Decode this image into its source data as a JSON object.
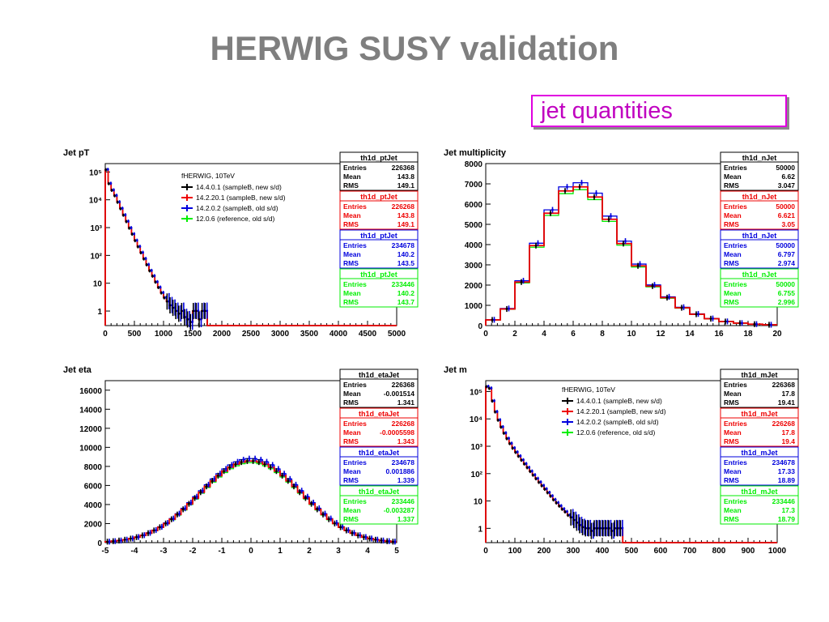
{
  "slide": {
    "title": "HERWIG SUSY validation",
    "callout": "jet quantities"
  },
  "colors": {
    "v1": "#000000",
    "v2": "#ee0000",
    "v3": "#0000dd",
    "v4": "#00ee00",
    "title": "#7f7f7f",
    "callout": "#c000c0"
  },
  "legend": {
    "title": "fHERWIG, 10TeV",
    "entries": [
      "14.4.0.1 (sampleB, new s/d)",
      "14.2.20.1 (sampleB, new s/d)",
      "14.2.0.2 (sampleB, old s/d)",
      "12.0.6 (reference, old s/d)"
    ]
  },
  "stat_labels": [
    "Entries",
    "Mean",
    "RMS"
  ],
  "chart_data": [
    {
      "type": "line",
      "title": "Jet pT",
      "histogram": "th1d_ptJet",
      "log_y": true,
      "xlim": [
        0,
        5000
      ],
      "ylim": [
        0.3,
        200000
      ],
      "x_ticks": [
        "0",
        "500",
        "1000",
        "1500",
        "2000",
        "2500",
        "3000",
        "3500",
        "4000",
        "4500",
        "5000"
      ],
      "y_ticks": [
        "1",
        "10",
        "10²",
        "10³",
        "10⁴",
        "10⁵"
      ],
      "legend": true,
      "stats": [
        {
          "entries": "226368",
          "mean": "143.8",
          "rms": "149.1"
        },
        {
          "entries": "226268",
          "mean": "143.8",
          "rms": "149.1"
        },
        {
          "entries": "234678",
          "mean": "140.2",
          "rms": "143.5"
        },
        {
          "entries": "233446",
          "mean": "140.2",
          "rms": "143.7"
        }
      ],
      "bin_edges": [
        0,
        50,
        100,
        150,
        200,
        250,
        300,
        350,
        400,
        450,
        500,
        550,
        600,
        650,
        700,
        750,
        800,
        850,
        900,
        950,
        1000,
        1050,
        1100,
        1150,
        1200,
        1250,
        1300,
        1350,
        1400,
        1450,
        1500,
        1550,
        1600,
        1650,
        1700,
        1750,
        1800,
        5000
      ],
      "values": [
        120000,
        38000,
        22000,
        14000,
        8200,
        4800,
        2800,
        1650,
        960,
        580,
        340,
        205,
        125,
        75,
        46,
        28,
        18,
        11,
        7,
        4.5,
        3.0,
        2.2,
        1.6,
        1.3,
        1.0,
        0.8,
        1.0,
        0.6,
        0.5,
        0.4,
        1,
        1,
        0.5,
        1,
        1,
        0,
        0
      ]
    },
    {
      "type": "line",
      "title": "Jet multiplicity",
      "histogram": "th1d_nJet",
      "log_y": false,
      "xlim": [
        0,
        20
      ],
      "ylim": [
        0,
        8000
      ],
      "x_ticks": [
        "0",
        "2",
        "4",
        "6",
        "8",
        "10",
        "12",
        "14",
        "16",
        "18",
        "20"
      ],
      "y_ticks": [
        "0",
        "1000",
        "2000",
        "3000",
        "4000",
        "5000",
        "6000",
        "7000",
        "8000"
      ],
      "legend": false,
      "stats": [
        {
          "entries": "50000",
          "mean": "6.62",
          "rms": "3.047"
        },
        {
          "entries": "50000",
          "mean": "6.621",
          "rms": "3.05"
        },
        {
          "entries": "50000",
          "mean": "6.797",
          "rms": "2.974"
        },
        {
          "entries": "50000",
          "mean": "6.755",
          "rms": "2.996"
        }
      ],
      "bin_edges": [
        0,
        1,
        2,
        3,
        4,
        5,
        6,
        7,
        8,
        9,
        10,
        11,
        12,
        13,
        14,
        15,
        16,
        17,
        18,
        19,
        20
      ],
      "values": [
        280,
        820,
        2150,
        3950,
        5550,
        6650,
        6850,
        6350,
        5250,
        4050,
        2950,
        1950,
        1380,
        880,
        560,
        340,
        200,
        120,
        70,
        40
      ]
    },
    {
      "type": "line",
      "title": "Jet eta",
      "histogram": "th1d_etaJet",
      "log_y": false,
      "xlim": [
        -5,
        5
      ],
      "ylim": [
        0,
        17000
      ],
      "x_ticks": [
        "-5",
        "-4",
        "-3",
        "-2",
        "-1",
        "0",
        "1",
        "2",
        "3",
        "4",
        "5"
      ],
      "y_ticks": [
        "0",
        "2000",
        "4000",
        "6000",
        "8000",
        "10000",
        "12000",
        "14000",
        "16000"
      ],
      "legend": false,
      "stats": [
        {
          "entries": "226368",
          "mean": "-0.001514",
          "rms": "1.341"
        },
        {
          "entries": "226268",
          "mean": "-0.0005598",
          "rms": "1.343"
        },
        {
          "entries": "234678",
          "mean": "0.001886",
          "rms": "1.339"
        },
        {
          "entries": "233446",
          "mean": "-0.003287",
          "rms": "1.337"
        }
      ],
      "bin_edges": [
        -5,
        -4.8,
        -4.6,
        -4.4,
        -4.2,
        -4,
        -3.8,
        -3.6,
        -3.4,
        -3.2,
        -3,
        -2.8,
        -2.6,
        -2.4,
        -2.2,
        -2,
        -1.8,
        -1.6,
        -1.4,
        -1.2,
        -1,
        -0.8,
        -0.6,
        -0.4,
        -0.2,
        0,
        0.2,
        0.4,
        0.6,
        0.8,
        1,
        1.2,
        1.4,
        1.6,
        1.8,
        2,
        2.2,
        2.4,
        2.6,
        2.8,
        3,
        3.2,
        3.4,
        3.6,
        3.8,
        4,
        4.2,
        4.4,
        4.6,
        4.8,
        5
      ],
      "values": [
        102,
        152,
        218,
        306,
        422,
        571,
        760,
        994,
        1278,
        1616,
        2008,
        2455,
        2953,
        3496,
        4076,
        4680,
        5294,
        5902,
        6486,
        7027,
        7509,
        7916,
        8234,
        8452,
        8562,
        8562,
        8452,
        8234,
        7916,
        7509,
        7027,
        6486,
        5902,
        5294,
        4680,
        4076,
        3496,
        2953,
        2455,
        2008,
        1616,
        1278,
        994,
        760,
        571,
        422,
        306,
        218,
        152,
        102
      ]
    },
    {
      "type": "line",
      "title": "Jet m",
      "histogram": "th1d_mJet",
      "log_y": true,
      "xlim": [
        0,
        1000
      ],
      "ylim": [
        0.3,
        250000
      ],
      "x_ticks": [
        "0",
        "100",
        "200",
        "300",
        "400",
        "500",
        "600",
        "700",
        "800",
        "900",
        "1000"
      ],
      "y_ticks": [
        "1",
        "10",
        "10²",
        "10³",
        "10⁴",
        "10⁵"
      ],
      "legend": true,
      "stats": [
        {
          "entries": "226368",
          "mean": "17.8",
          "rms": "19.41"
        },
        {
          "entries": "226268",
          "mean": "17.8",
          "rms": "19.4"
        },
        {
          "entries": "234678",
          "mean": "17.33",
          "rms": "18.89"
        },
        {
          "entries": "233446",
          "mean": "17.3",
          "rms": "18.79"
        }
      ],
      "bin_edges": [
        0,
        10,
        20,
        30,
        40,
        50,
        60,
        70,
        80,
        90,
        100,
        110,
        120,
        130,
        140,
        150,
        160,
        170,
        180,
        190,
        200,
        210,
        220,
        230,
        240,
        250,
        260,
        270,
        280,
        290,
        300,
        310,
        320,
        330,
        340,
        350,
        360,
        370,
        380,
        390,
        400,
        410,
        420,
        430,
        440,
        450,
        460,
        470,
        1000
      ],
      "values": [
        150000,
        130000,
        45000,
        18000,
        9000,
        5000,
        3000,
        1900,
        1250,
        850,
        600,
        430,
        310,
        225,
        165,
        120,
        88,
        65,
        48,
        36,
        27,
        20,
        15,
        11,
        8.5,
        6.5,
        5,
        4,
        3,
        2.5,
        2,
        1.6,
        1.3,
        1.1,
        1,
        1,
        0.8,
        1,
        1,
        1,
        1,
        1,
        1,
        0.8,
        1,
        1,
        1,
        0
      ]
    }
  ]
}
